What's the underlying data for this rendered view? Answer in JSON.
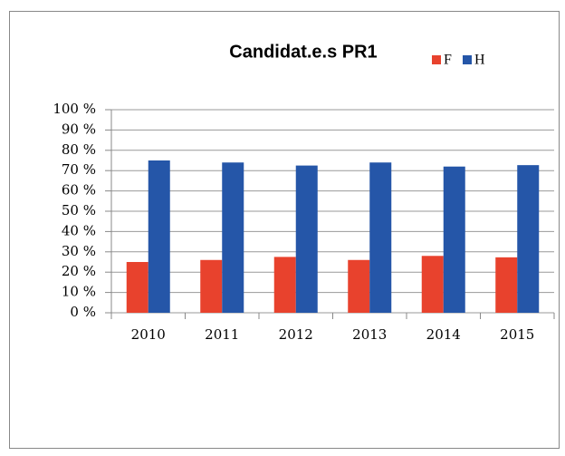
{
  "chart_data": {
    "type": "bar",
    "title": "Candidat.e.s PR1",
    "categories": [
      "2010",
      "2011",
      "2012",
      "2013",
      "2014",
      "2015"
    ],
    "series": [
      {
        "name": "F",
        "color": "#e8422d",
        "values": [
          25,
          26,
          27.5,
          26,
          28,
          27.3
        ]
      },
      {
        "name": "H",
        "color": "#2556a8",
        "values": [
          75,
          74,
          72.5,
          74,
          72,
          72.7
        ]
      }
    ],
    "ylim": [
      0,
      100
    ],
    "yticks": [
      {
        "value": 0,
        "label": "0 %"
      },
      {
        "value": 10,
        "label": "10 %"
      },
      {
        "value": 20,
        "label": "20 %"
      },
      {
        "value": 30,
        "label": "30 %"
      },
      {
        "value": 40,
        "label": "40 %"
      },
      {
        "value": 50,
        "label": "50 %"
      },
      {
        "value": 60,
        "label": "60 %"
      },
      {
        "value": 70,
        "label": "70 %"
      },
      {
        "value": 80,
        "label": "80 %"
      },
      {
        "value": 90,
        "label": "90 %"
      },
      {
        "value": 100,
        "label": "100 %"
      }
    ],
    "grid": true,
    "legend": "top-right"
  }
}
